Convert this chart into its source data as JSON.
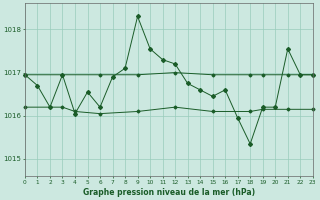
{
  "title": "Graphe pression niveau de la mer (hPa)",
  "background_color": "#cce8e0",
  "grid_color": "#99ccbb",
  "line_color": "#1a5c28",
  "text_color": "#1a5c28",
  "xlim": [
    0,
    23
  ],
  "ylim": [
    1014.6,
    1018.6
  ],
  "yticks": [
    1015,
    1016,
    1017,
    1018
  ],
  "xticks": [
    0,
    1,
    2,
    3,
    4,
    5,
    6,
    7,
    8,
    9,
    10,
    11,
    12,
    13,
    14,
    15,
    16,
    17,
    18,
    19,
    20,
    21,
    22,
    23
  ],
  "series_main": {
    "x": [
      0,
      1,
      2,
      3,
      4,
      5,
      6,
      7,
      8,
      9,
      10,
      11,
      12,
      13,
      14,
      15,
      16,
      17,
      18,
      19,
      20,
      21,
      22,
      23
    ],
    "y": [
      1016.95,
      1016.7,
      1016.2,
      1016.95,
      1016.05,
      1016.55,
      1016.2,
      1016.9,
      1017.1,
      1018.3,
      1017.55,
      1017.3,
      1017.2,
      1016.75,
      1016.6,
      1016.45,
      1016.6,
      1015.95,
      1015.35,
      1016.2,
      1016.2,
      1017.55,
      1016.95,
      1016.95
    ]
  },
  "series_flat_top": {
    "x": [
      0,
      3,
      6,
      9,
      12,
      15,
      18,
      19,
      21,
      23
    ],
    "y": [
      1016.95,
      1016.95,
      1016.95,
      1016.95,
      1017.0,
      1016.95,
      1016.95,
      1016.95,
      1016.95,
      1016.95
    ]
  },
  "series_flat_bottom": {
    "x": [
      0,
      2,
      3,
      4,
      6,
      9,
      12,
      15,
      18,
      19,
      21,
      23
    ],
    "y": [
      1016.2,
      1016.2,
      1016.2,
      1016.1,
      1016.05,
      1016.1,
      1016.2,
      1016.1,
      1016.1,
      1016.15,
      1016.15,
      1016.15
    ]
  }
}
